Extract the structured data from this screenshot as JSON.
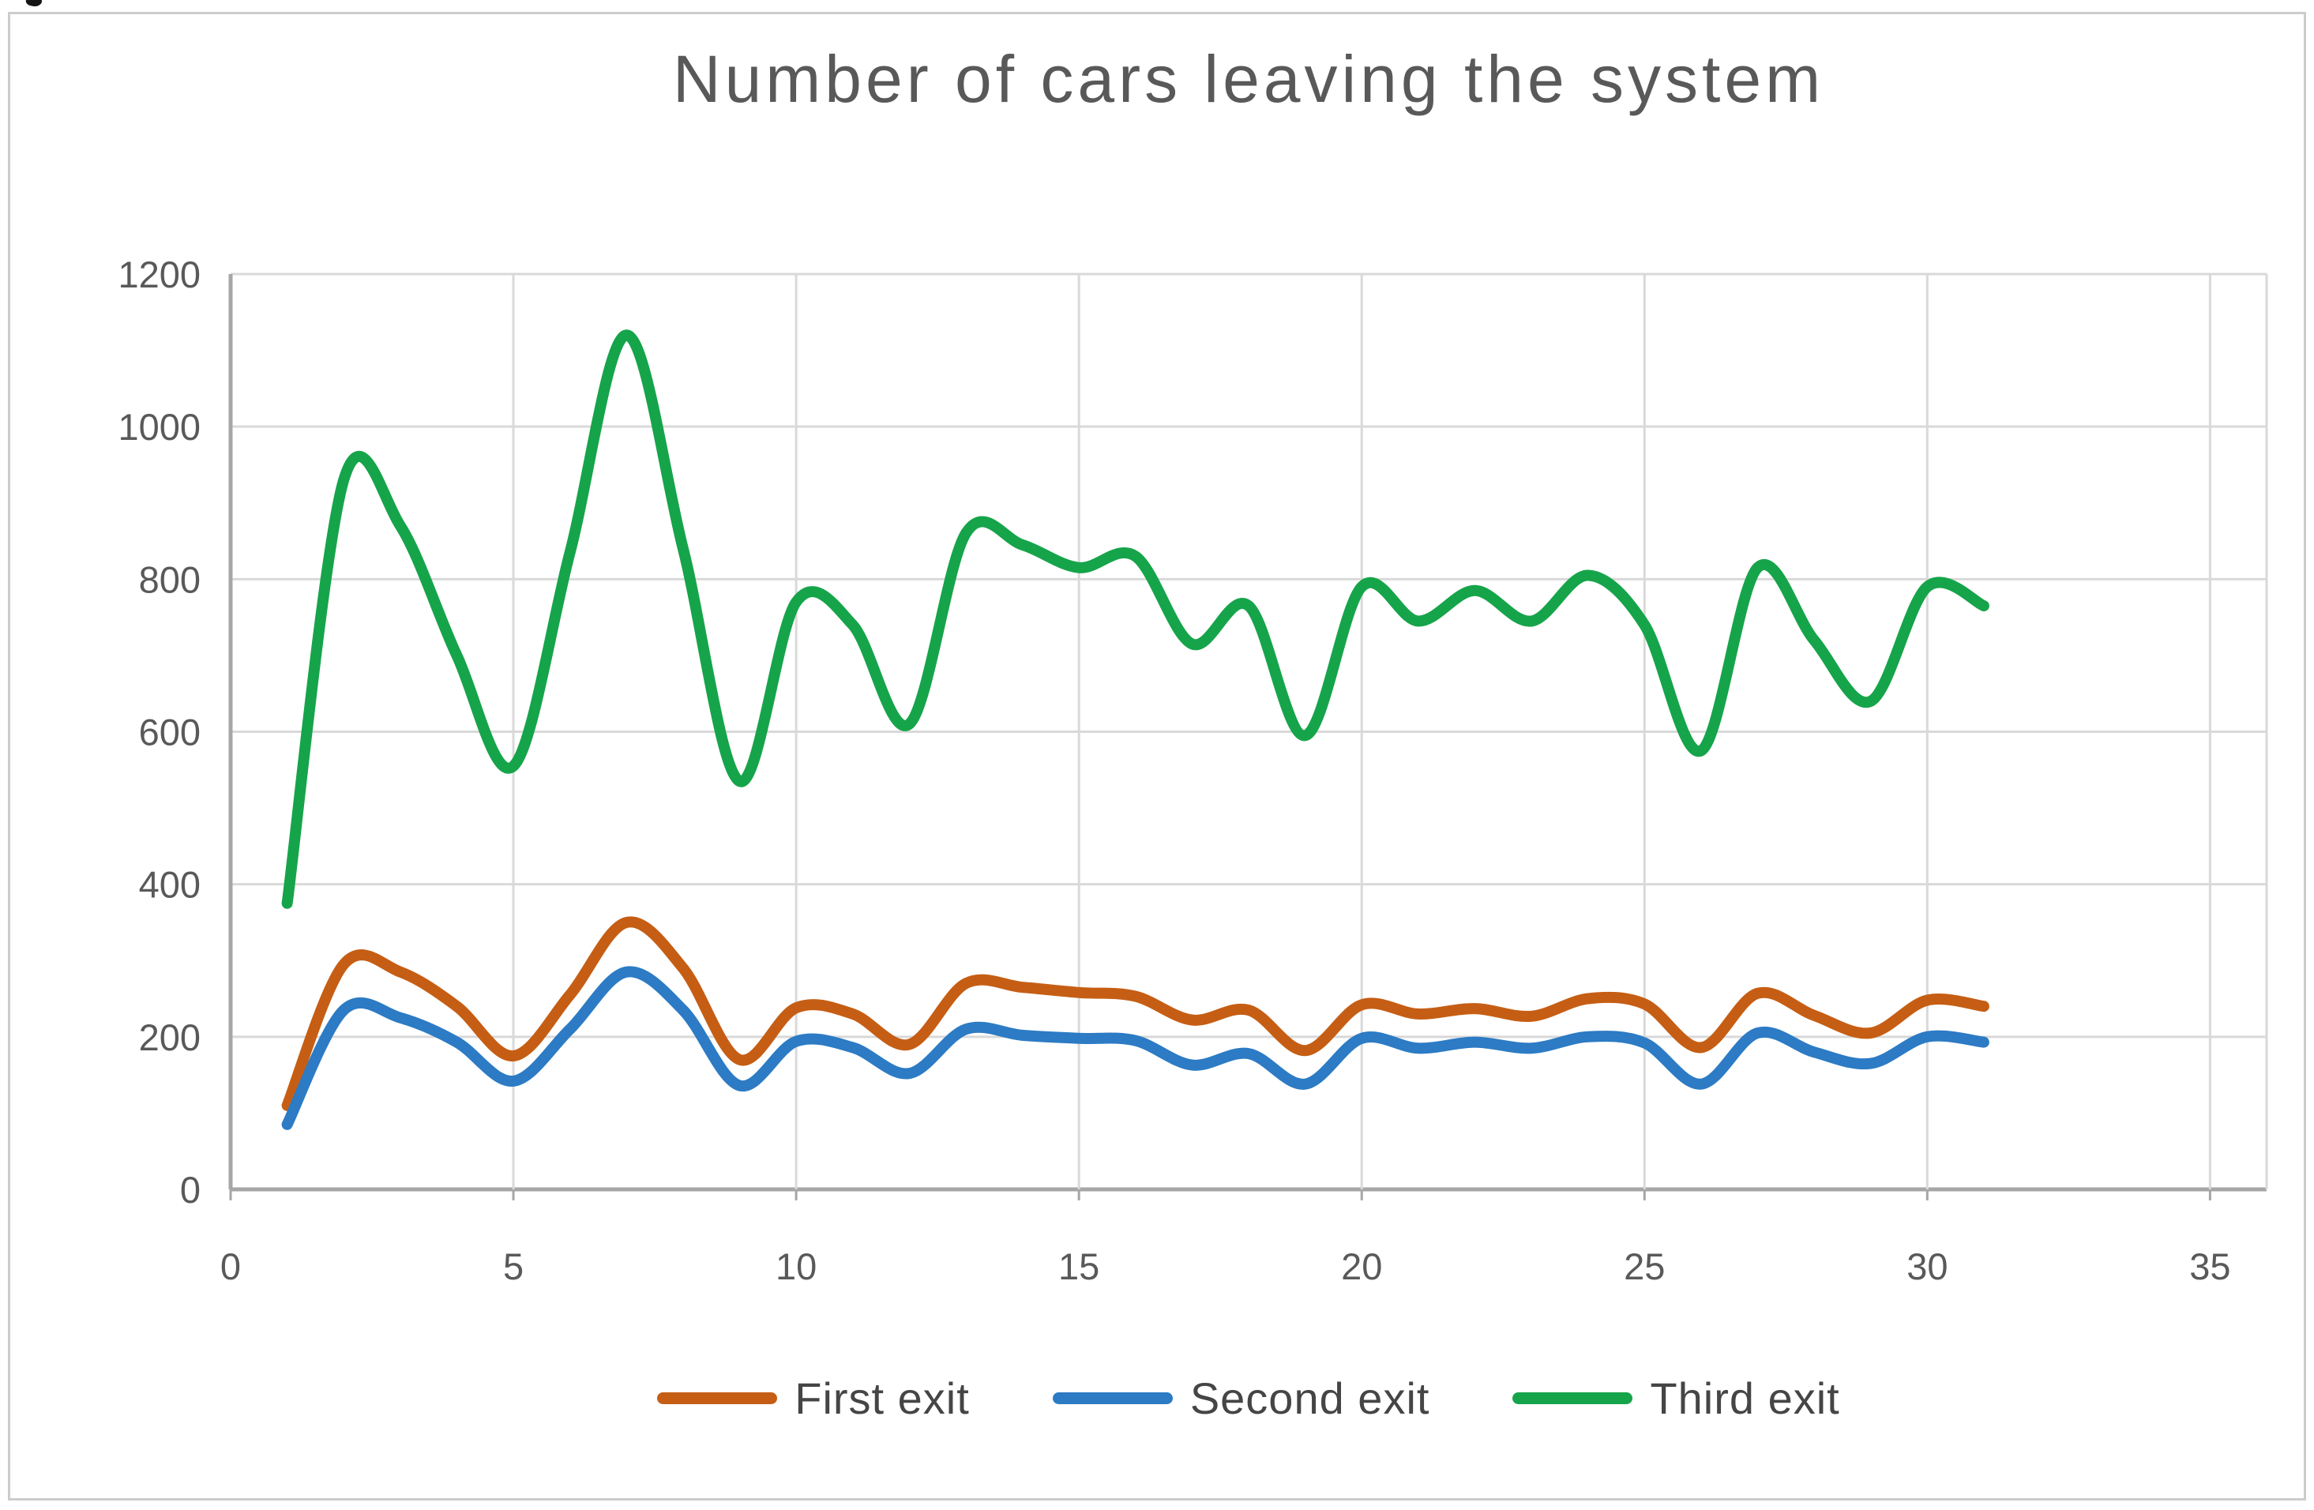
{
  "chart_data": {
    "type": "line",
    "title": "Number of cars leaving the system",
    "smooth": true,
    "grid": true,
    "legend_position": "bottom",
    "xlim": [
      0,
      36
    ],
    "ylim": [
      0,
      1200
    ],
    "x_ticks": [
      0,
      5,
      10,
      15,
      20,
      25,
      30,
      35
    ],
    "y_ticks": [
      0,
      200,
      400,
      600,
      800,
      1000,
      1200
    ],
    "x": [
      1,
      2,
      3,
      4,
      5,
      6,
      7,
      8,
      9,
      10,
      11,
      12,
      13,
      14,
      15,
      16,
      17,
      18,
      19,
      20,
      21,
      22,
      23,
      24,
      25,
      26,
      27,
      28,
      29,
      30,
      31
    ],
    "series": [
      {
        "name": "First exit",
        "color": "#c55e14",
        "values": [
          110,
          295,
          285,
          240,
          175,
          255,
          350,
          290,
          170,
          238,
          230,
          190,
          270,
          265,
          258,
          253,
          222,
          235,
          182,
          242,
          230,
          237,
          227,
          250,
          243,
          186,
          257,
          228,
          205,
          248,
          240
        ]
      },
      {
        "name": "Second exit",
        "color": "#2c7bc4",
        "values": [
          85,
          235,
          225,
          193,
          142,
          210,
          285,
          235,
          136,
          194,
          186,
          152,
          210,
          202,
          198,
          195,
          163,
          178,
          138,
          198,
          185,
          193,
          185,
          200,
          192,
          138,
          205,
          180,
          165,
          200,
          193
        ]
      },
      {
        "name": "Third exit",
        "color": "#16a44a",
        "values": [
          375,
          930,
          870,
          700,
          555,
          835,
          1120,
          840,
          535,
          770,
          740,
          610,
          860,
          845,
          815,
          830,
          715,
          765,
          595,
          790,
          745,
          785,
          745,
          805,
          740,
          575,
          815,
          720,
          640,
          790,
          765
        ]
      }
    ],
    "colors": {
      "gridline": "#d9d9d9",
      "axis": "#a6a6a6",
      "tick_text": "#595959",
      "title_text": "#595959",
      "legend_text": "#454545"
    }
  }
}
